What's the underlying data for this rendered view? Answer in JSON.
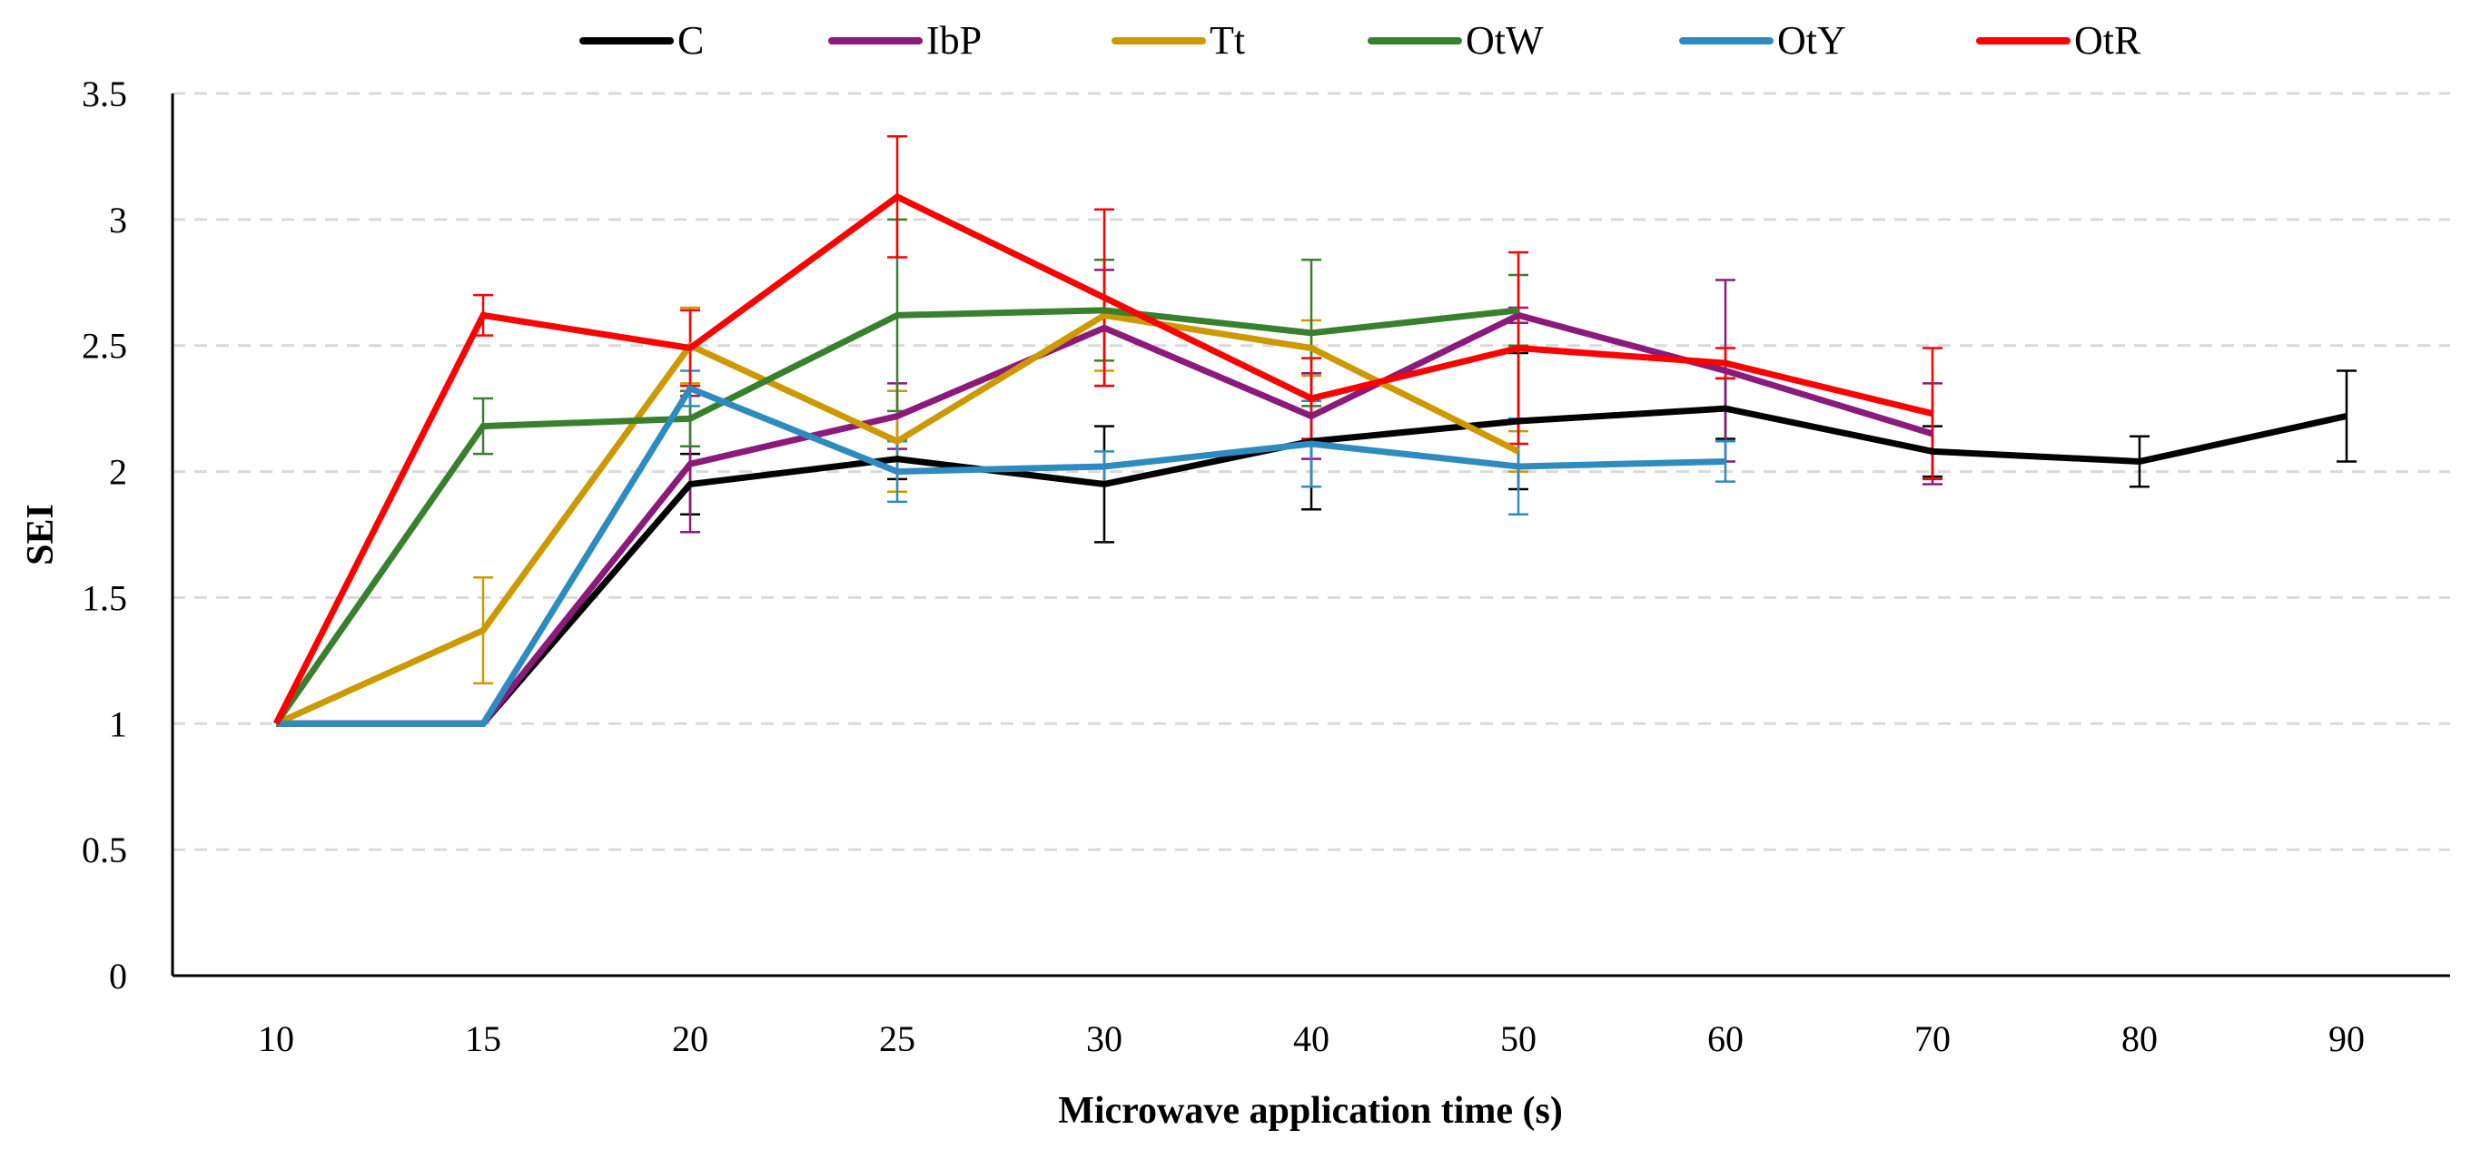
{
  "chart_data": {
    "type": "line",
    "xlabel": "Microwave application time (s)",
    "ylabel": "SEI",
    "categories": [
      "10",
      "15",
      "20",
      "25",
      "30",
      "40",
      "50",
      "60",
      "70",
      "80",
      "90"
    ],
    "ylim": [
      0,
      3.5
    ],
    "yticks": [
      "0",
      "0.5",
      "1",
      "1.5",
      "2",
      "2.5",
      "3",
      "3.5"
    ],
    "grid": true,
    "legend_position": "top",
    "series": [
      {
        "name": "C",
        "color": "#000000",
        "values": [
          1.0,
          1.0,
          1.95,
          2.05,
          1.95,
          2.12,
          2.2,
          2.25,
          2.08,
          2.04,
          2.22
        ],
        "errors": [
          0,
          0,
          0.12,
          0.08,
          0.23,
          0.27,
          0.27,
          0.12,
          0.1,
          0.1,
          0.18
        ]
      },
      {
        "name": "IbP",
        "color": "#8B1A7A",
        "values": [
          1.0,
          1.0,
          2.03,
          2.22,
          2.57,
          2.22,
          2.62,
          2.4,
          2.15,
          null,
          null
        ],
        "errors": [
          0,
          0,
          0.27,
          0.13,
          0.23,
          0.17,
          0.03,
          0.36,
          0.2,
          null,
          null
        ]
      },
      {
        "name": "Tt",
        "color": "#CC9900",
        "values": [
          1.0,
          1.37,
          2.5,
          2.12,
          2.62,
          2.49,
          2.08,
          null,
          null,
          null,
          null
        ],
        "errors": [
          0,
          0.21,
          0.15,
          0.2,
          0.22,
          0.11,
          0.08,
          null,
          null,
          null,
          null
        ]
      },
      {
        "name": "OtW",
        "color": "#38802E",
        "values": [
          1.0,
          2.18,
          2.21,
          2.62,
          2.64,
          2.55,
          2.64,
          null,
          null,
          null,
          null
        ],
        "errors": [
          0,
          0.11,
          0.11,
          0.38,
          0.2,
          0.29,
          0.14,
          null,
          null,
          null,
          null
        ]
      },
      {
        "name": "OtY",
        "color": "#2E8BC0",
        "values": [
          1.0,
          1.0,
          2.33,
          2.0,
          2.02,
          2.11,
          2.02,
          2.04,
          null,
          null,
          null
        ],
        "errors": [
          0,
          0,
          0.07,
          0.12,
          0.06,
          0.17,
          0.19,
          0.08,
          null,
          null,
          null
        ]
      },
      {
        "name": "OtR",
        "color": "#FF0000",
        "values": [
          1.0,
          2.62,
          2.49,
          3.09,
          2.69,
          2.29,
          2.49,
          2.43,
          2.23,
          null,
          null
        ],
        "errors": [
          0,
          0.08,
          0.15,
          0.24,
          0.35,
          0.16,
          0.38,
          0.06,
          0.26,
          null,
          null
        ]
      }
    ]
  }
}
